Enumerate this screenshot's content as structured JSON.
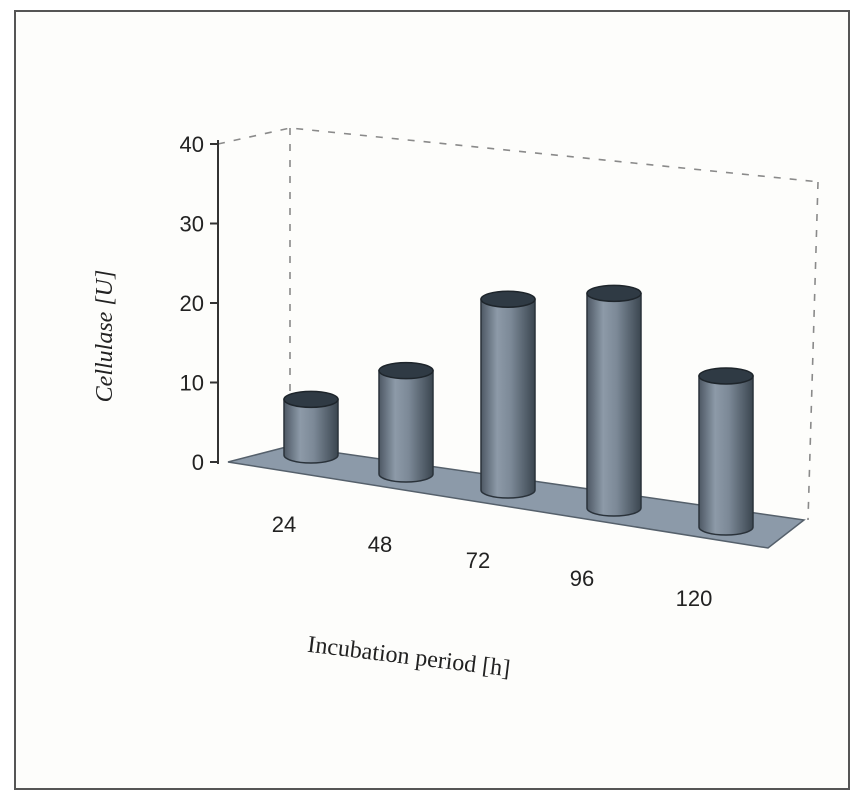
{
  "chart_data": {
    "type": "bar",
    "style": "3d-cylinder",
    "categories": [
      "24",
      "48",
      "72",
      "96",
      "120"
    ],
    "values": [
      7,
      13,
      24,
      27,
      19
    ],
    "title": "",
    "xlabel": "Incubation period [h]",
    "ylabel": "Cellulase [U]",
    "ylim": [
      0,
      40
    ],
    "yticks": [
      "0",
      "10",
      "20",
      "30",
      "40"
    ],
    "grid": false,
    "legend": "none",
    "colors": {
      "bar": "#7a8796",
      "bar_shadow": "#3e4852",
      "bar_top": "#2f3a44",
      "floor": "#8c9aa9",
      "axis": "#333333",
      "frame_guides": "#8a8a8a"
    }
  }
}
